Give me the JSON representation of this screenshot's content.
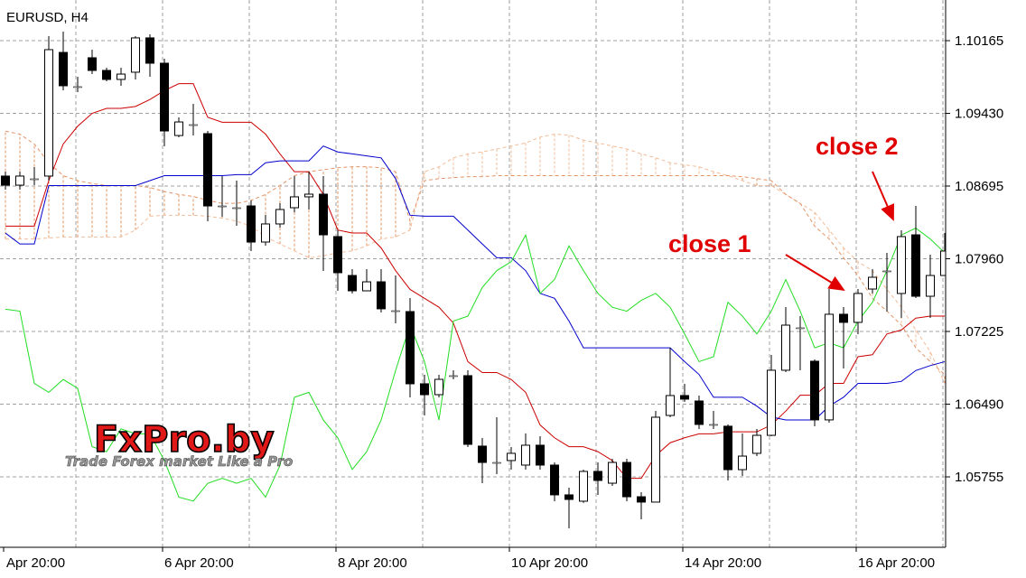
{
  "chart_data": {
    "type": "candlestick",
    "title": "EURUSD, H4",
    "categories": [
      "Apr 20:00",
      null,
      null,
      null,
      null,
      null,
      null,
      null,
      null,
      null,
      null,
      "6 Apr 20:00",
      null,
      null,
      null,
      null,
      null,
      null,
      null,
      null,
      null,
      null,
      null,
      "8 Apr 20:00",
      null,
      null,
      null,
      null,
      null,
      null,
      null,
      null,
      null,
      null,
      null,
      "10 Apr 20:00",
      null,
      null,
      null,
      null,
      null,
      null,
      null,
      null,
      null,
      null,
      null,
      "14 Apr 20:00",
      null,
      null,
      null,
      null,
      null,
      null,
      null,
      null,
      null,
      null,
      null,
      "16 Apr 20:00",
      null,
      null,
      null,
      null,
      null,
      null
    ],
    "open": [
      1.08796,
      1.08704,
      1.08768,
      1.08796,
      1.10046,
      1.097,
      1.09992,
      1.09864,
      1.09773,
      1.09846,
      1.10193,
      1.09937,
      1.09206,
      1.09316,
      1.09225,
      1.08494,
      1.08476,
      1.08494,
      1.08129,
      1.08312,
      1.08476,
      1.08586,
      1.08613,
      1.08184,
      1.07791,
      1.07636,
      1.07727,
      1.07435,
      1.07426,
      1.06696,
      1.06586,
      1.06778,
      1.06778,
      1.06066,
      1.05901,
      1.0592,
      1.05874,
      1.06075,
      1.05874,
      1.05573,
      1.05509,
      1.0581,
      1.05691,
      1.05901,
      1.05554,
      1.055,
      1.06376,
      1.06577,
      1.06522,
      1.06285,
      1.06267,
      1.05828,
      1.05993,
      1.06175,
      1.06833,
      1.07262,
      1.06924,
      1.06331,
      1.07399,
      1.07317,
      1.07654,
      1.07837,
      1.07609,
      1.08202,
      1.07581,
      1.07791
    ],
    "high": [
      1.08841,
      1.08841,
      1.08887,
      1.10211,
      1.10256,
      1.098,
      1.10074,
      1.09891,
      1.09891,
      1.10211,
      1.10229,
      1.09983,
      1.09389,
      1.09526,
      1.09252,
      1.08796,
      1.0875,
      1.08549,
      1.08403,
      1.08522,
      1.08796,
      1.08841,
      1.08796,
      1.08248,
      1.07855,
      1.07855,
      1.07855,
      1.07791,
      1.07563,
      1.06787,
      1.06787,
      1.06833,
      1.06833,
      1.06148,
      1.06358,
      1.06057,
      1.06194,
      1.06166,
      1.05901,
      1.05646,
      1.05828,
      1.05901,
      1.05938,
      1.05938,
      1.056,
      1.06422,
      1.07061,
      1.06696,
      1.06577,
      1.06422,
      1.06285,
      1.06194,
      1.06239,
      1.06988,
      1.07472,
      1.0738,
      1.06942,
      1.07654,
      1.07472,
      1.07654,
      1.07855,
      1.0802,
      1.08248,
      1.08494,
      1.08001,
      1.0822
    ],
    "low": [
      1.08659,
      1.08659,
      1.08704,
      1.0875,
      1.09663,
      1.09645,
      1.09827,
      1.09754,
      1.09709,
      1.09773,
      1.098,
      1.09097,
      1.09188,
      1.09206,
      1.08339,
      1.08385,
      1.08293,
      1.08038,
      1.08093,
      1.08275,
      1.0843,
      1.08458,
      1.07837,
      1.07636,
      1.07609,
      1.07636,
      1.07417,
      1.07307,
      1.06559,
      1.06376,
      1.06559,
      1.06741,
      1.06057,
      1.05691,
      1.05783,
      1.05828,
      1.05828,
      1.05828,
      1.05509,
      1.05235,
      1.05491,
      1.05573,
      1.05664,
      1.05509,
      1.05326,
      1.055,
      1.06358,
      1.06513,
      1.06239,
      1.06239,
      1.05719,
      1.05764,
      1.05965,
      1.06166,
      1.06814,
      1.06833,
      1.06267,
      1.06303,
      1.06851,
      1.07198,
      1.07609,
      1.07426,
      1.07362,
      1.07563,
      1.07362,
      1.07791
    ],
    "close": [
      1.08704,
      1.08796,
      1.08768,
      1.10074,
      1.09709,
      1.097,
      1.09864,
      1.09773,
      1.09827,
      1.10193,
      1.09937,
      1.09252,
      1.09343,
      1.09316,
      1.08494,
      1.08494,
      1.08476,
      1.08129,
      1.08312,
      1.08458,
      1.08586,
      1.08613,
      1.08202,
      1.07819,
      1.07636,
      1.07727,
      1.07454,
      1.07435,
      1.06696,
      1.06586,
      1.06741,
      1.06778,
      1.06084,
      1.05901,
      1.05901,
      1.05993,
      1.06075,
      1.05874,
      1.05573,
      1.05527,
      1.0581,
      1.05719,
      1.05901,
      1.05554,
      1.055,
      1.06358,
      1.06577,
      1.06541,
      1.06285,
      1.06285,
      1.05828,
      1.05965,
      1.06175,
      1.06833,
      1.07289,
      1.07262,
      1.06331,
      1.07399,
      1.07317,
      1.07609,
      1.07773,
      1.07837,
      1.08184,
      1.07581,
      1.07791,
      1.08038
    ],
    "up_color": "#ffffff",
    "down_color": "#000000",
    "series": [
      {
        "color": "#cc0000",
        "values": [
          1.0829,
          1.0829,
          1.0829,
          1.0875,
          1.0912,
          1.093,
          1.0943,
          1.0948,
          1.0948,
          1.095,
          1.0957,
          1.0966,
          1.0973,
          1.0973,
          1.0939,
          1.0934,
          1.0934,
          1.0934,
          1.0922,
          1.0902,
          1.0884,
          1.0884,
          1.0861,
          1.0825,
          1.0822,
          1.0822,
          1.0807,
          1.0784,
          1.0765,
          1.0756,
          1.0747,
          1.0731,
          1.0692,
          1.0681,
          1.0681,
          1.0674,
          1.0661,
          1.0628,
          1.0615,
          1.0606,
          1.0606,
          1.0601,
          1.0592,
          1.0574,
          1.0574,
          1.0597,
          1.061,
          1.0615,
          1.0619,
          1.0619,
          1.0621,
          1.0621,
          1.0621,
          1.0628,
          1.0642,
          1.0658,
          1.0658,
          1.067,
          1.067,
          1.0697,
          1.0699,
          1.072,
          1.0724,
          1.0736,
          1.0738,
          1.0738
        ]
      },
      {
        "color": "#0000cc",
        "values": [
          1.0822,
          1.0811,
          1.0811,
          1.087,
          1.087,
          1.087,
          1.087,
          1.087,
          1.087,
          1.087,
          1.0875,
          1.088,
          1.088,
          1.088,
          1.088,
          1.088,
          1.0881,
          1.0881,
          1.0893,
          1.0895,
          1.0895,
          1.0895,
          1.091,
          1.0904,
          1.0902,
          1.09,
          1.0898,
          1.0877,
          1.084,
          1.0839,
          1.0839,
          1.0839,
          1.0825,
          1.0811,
          1.0797,
          1.0797,
          1.0784,
          1.0761,
          1.0756,
          1.0733,
          1.0706,
          1.0706,
          1.0706,
          1.0706,
          1.0706,
          1.0706,
          1.0706,
          1.0692,
          1.0679,
          1.0656,
          1.0656,
          1.0656,
          1.0647,
          1.0636,
          1.0633,
          1.0633,
          1.0633,
          1.0647,
          1.0656,
          1.067,
          1.067,
          1.067,
          1.0672,
          1.0683,
          1.0688,
          1.0692
        ]
      },
      {
        "color": "#22dd22",
        "values": [
          1.0745,
          1.0743,
          1.067,
          1.0661,
          1.0674,
          1.0665,
          1.0606,
          1.0601,
          1.0624,
          1.0619,
          1.0619,
          1.0592,
          1.0555,
          1.0551,
          1.0569,
          1.0574,
          1.0569,
          1.0574,
          1.0555,
          1.0587,
          1.0656,
          1.0661,
          1.0633,
          1.0615,
          1.0583,
          1.0601,
          1.0633,
          1.0683,
          1.0729,
          1.0692,
          1.0633,
          1.0733,
          1.0738,
          1.0767,
          1.0784,
          1.0793,
          1.082,
          1.0761,
          1.0775,
          1.0809,
          1.0784,
          1.0761,
          1.0747,
          1.0743,
          1.0754,
          1.0761,
          1.0747,
          1.072,
          1.0692,
          1.0697,
          1.0752,
          1.0738,
          1.072,
          1.0743,
          1.0775,
          1.0743,
          1.0706,
          1.0711,
          1.0706,
          1.0733,
          1.0752,
          1.0784,
          1.082,
          1.0827,
          1.0816,
          1.0802
        ]
      }
    ],
    "cloud": {
      "colors": [
        "#f2bd9a",
        "#e39466"
      ],
      "span_a": [
        1.0816,
        1.0816,
        1.0816,
        1.0817,
        1.0818,
        1.0818,
        1.0818,
        1.0818,
        1.0818,
        1.0825,
        1.0839,
        1.084,
        1.084,
        1.084,
        1.0839,
        1.0837,
        1.0834,
        1.0829,
        1.0818,
        1.0811,
        1.0804,
        1.0797,
        1.0799,
        1.0802,
        1.0804,
        1.0809,
        1.0816,
        1.0818,
        1.0825,
        1.0884,
        1.0889,
        1.0898,
        1.0902,
        1.0904,
        1.0907,
        1.091,
        1.0913,
        1.0919,
        1.0922,
        1.0921,
        1.0916,
        1.0913,
        1.091,
        1.0907,
        1.0902,
        1.0898,
        1.0893,
        1.0891,
        1.0889,
        1.0884,
        1.088,
        1.0875,
        1.087,
        1.087,
        1.0861,
        1.0852,
        1.0843,
        1.0825,
        1.0807,
        1.0793,
        1.0784,
        1.0765,
        1.0747,
        1.0724,
        1.0702,
        1.067
      ],
      "span_b": [
        1.0925,
        1.0922,
        1.0912,
        1.0893,
        1.088,
        1.0875,
        1.0872,
        1.087,
        1.087,
        1.087,
        1.0868,
        1.0864,
        1.0861,
        1.0859,
        1.0855,
        1.0852,
        1.0852,
        1.0855,
        1.0861,
        1.087,
        1.088,
        1.0884,
        1.0886,
        1.0888,
        1.0889,
        1.0889,
        1.0888,
        1.0884,
        1.0834,
        1.0875,
        1.0877,
        1.0878,
        1.0879,
        1.0879,
        1.088,
        1.088,
        1.088,
        1.088,
        1.088,
        1.088,
        1.088,
        1.088,
        1.088,
        1.088,
        1.088,
        1.088,
        1.088,
        1.088,
        1.088,
        1.088,
        1.088,
        1.0879,
        1.0877,
        1.0875,
        1.0861,
        1.0852,
        1.0829,
        1.0816,
        1.0797,
        1.0779,
        1.0756,
        1.0743,
        1.0729,
        1.0706,
        1.0692,
        1.0679
      ]
    },
    "ylim": [
      1.05043,
      1.10576
    ],
    "yticks": [
      1.10165,
      {
        "value": 1.0943,
        "label": "1.09430"
      },
      1.08695,
      {
        "value": 1.0796,
        "label": "1.07960"
      },
      1.07225,
      {
        "value": 1.0649,
        "label": "1.06490"
      },
      1.05755
    ],
    "grid": true,
    "annotations": [
      "close 1",
      "close 2"
    ],
    "watermark": {
      "title": "FxPro.by",
      "subtitle": "Trade Forex market Like a Pro"
    }
  }
}
